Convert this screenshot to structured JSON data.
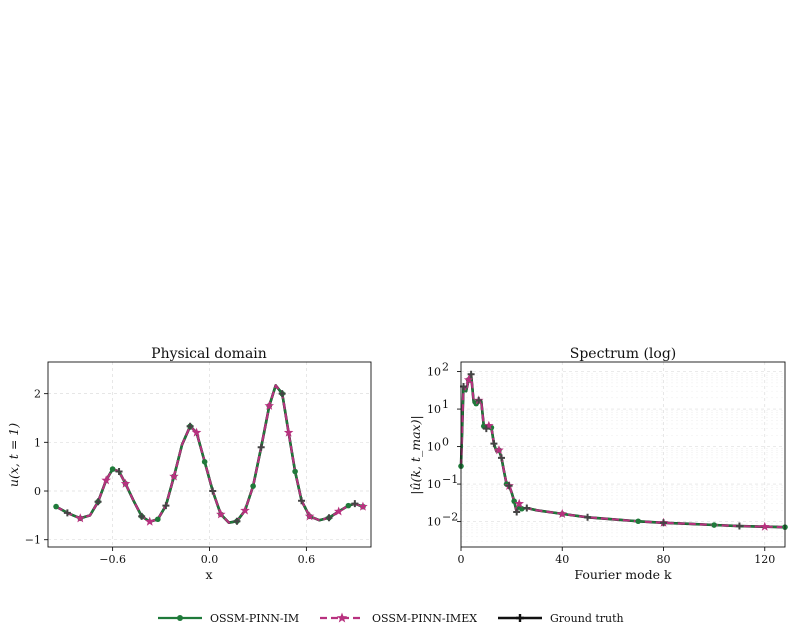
{
  "colors": {
    "im": "#1f7a3a",
    "imex": "#b8317f",
    "truth": "#111111",
    "marker_truth": "#444444",
    "grid": "#dddddd"
  },
  "legend": {
    "im": "OSSM-PINN-IM",
    "imex": "OSSM-PINN-IMEX",
    "truth": "Ground truth"
  },
  "chart_data": [
    {
      "type": "line",
      "title": "Physical domain",
      "xlabel": "x",
      "ylabel": "u(x, t = 1)",
      "xlim": [
        -1.0,
        1.0
      ],
      "ylim": [
        -1.15,
        2.65
      ],
      "xticks": [
        -0.6,
        0.0,
        0.6
      ],
      "xtick_labels": [
        "−0.6",
        "0.0",
        "0.6"
      ],
      "yticks": [
        -1,
        0,
        1,
        2
      ],
      "ytick_labels": [
        "−1",
        "0",
        "1",
        "2"
      ],
      "grid": true,
      "curve": [
        [
          -0.95,
          -0.32
        ],
        [
          -0.88,
          -0.45
        ],
        [
          -0.8,
          -0.56
        ],
        [
          -0.74,
          -0.5
        ],
        [
          -0.69,
          -0.22
        ],
        [
          -0.64,
          0.22
        ],
        [
          -0.6,
          0.45
        ],
        [
          -0.56,
          0.4
        ],
        [
          -0.52,
          0.15
        ],
        [
          -0.47,
          -0.2
        ],
        [
          -0.42,
          -0.52
        ],
        [
          -0.37,
          -0.63
        ],
        [
          -0.32,
          -0.58
        ],
        [
          -0.27,
          -0.3
        ],
        [
          -0.22,
          0.3
        ],
        [
          -0.17,
          0.95
        ],
        [
          -0.12,
          1.33
        ],
        [
          -0.08,
          1.2
        ],
        [
          -0.03,
          0.6
        ],
        [
          0.02,
          0.0
        ],
        [
          0.07,
          -0.48
        ],
        [
          0.12,
          -0.65
        ],
        [
          0.17,
          -0.62
        ],
        [
          0.22,
          -0.4
        ],
        [
          0.27,
          0.1
        ],
        [
          0.32,
          0.9
        ],
        [
          0.37,
          1.75
        ],
        [
          0.41,
          2.17
        ],
        [
          0.45,
          2.0
        ],
        [
          0.49,
          1.2
        ],
        [
          0.53,
          0.4
        ],
        [
          0.57,
          -0.2
        ],
        [
          0.62,
          -0.52
        ],
        [
          0.68,
          -0.6
        ],
        [
          0.74,
          -0.55
        ],
        [
          0.8,
          -0.42
        ],
        [
          0.86,
          -0.3
        ],
        [
          0.9,
          -0.26
        ],
        [
          0.95,
          -0.32
        ]
      ],
      "series": [
        {
          "name": "OSSM-PINN-IM",
          "marker": "circle",
          "markevery": 2
        },
        {
          "name": "OSSM-PINN-IMEX",
          "marker": "star",
          "markevery": 3
        },
        {
          "name": "Ground truth",
          "marker": "plus",
          "markevery": 3
        }
      ]
    },
    {
      "type": "line",
      "title": "Spectrum (log)",
      "xlabel": "Fourier mode k",
      "ylabel": "|û(k, t_max)|",
      "xlim": [
        0,
        128
      ],
      "ylim": [
        0.0021,
        180
      ],
      "yscale": "log",
      "xticks": [
        0,
        40,
        80,
        120
      ],
      "xtick_labels": [
        "0",
        "40",
        "80",
        "120"
      ],
      "yticks": [
        0.01,
        0.1,
        1,
        10,
        100
      ],
      "ytick_labels": [
        "10",
        "10",
        "10",
        "10",
        "10"
      ],
      "ytick_exponents": [
        "−2",
        "−1",
        "0",
        "1",
        "2"
      ],
      "grid": true,
      "curve": [
        [
          0,
          0.3
        ],
        [
          1,
          40
        ],
        [
          2,
          30
        ],
        [
          3,
          60
        ],
        [
          4,
          85
        ],
        [
          5,
          15
        ],
        [
          6,
          14
        ],
        [
          7,
          17
        ],
        [
          8,
          16
        ],
        [
          9,
          3.5
        ],
        [
          10,
          3.0
        ],
        [
          11,
          3.6
        ],
        [
          12,
          3.2
        ],
        [
          13,
          1.2
        ],
        [
          14,
          0.75
        ],
        [
          15,
          0.8
        ],
        [
          16,
          0.5
        ],
        [
          17,
          0.22
        ],
        [
          18,
          0.1
        ],
        [
          19,
          0.09
        ],
        [
          20,
          0.06
        ],
        [
          21,
          0.035
        ],
        [
          22,
          0.018
        ],
        [
          23,
          0.03
        ],
        [
          24,
          0.022
        ],
        [
          26,
          0.023
        ],
        [
          30,
          0.02
        ],
        [
          40,
          0.016
        ],
        [
          50,
          0.013
        ],
        [
          60,
          0.0115
        ],
        [
          70,
          0.0102
        ],
        [
          80,
          0.0093
        ],
        [
          90,
          0.0087
        ],
        [
          100,
          0.0081
        ],
        [
          110,
          0.0076
        ],
        [
          120,
          0.0073
        ],
        [
          128,
          0.0071
        ]
      ],
      "series": [
        {
          "name": "OSSM-PINN-IM",
          "marker": "circle",
          "markevery": 3
        },
        {
          "name": "OSSM-PINN-IMEX",
          "marker": "star",
          "markevery": 4
        },
        {
          "name": "Ground truth",
          "marker": "plus",
          "markevery": 3
        }
      ]
    }
  ]
}
